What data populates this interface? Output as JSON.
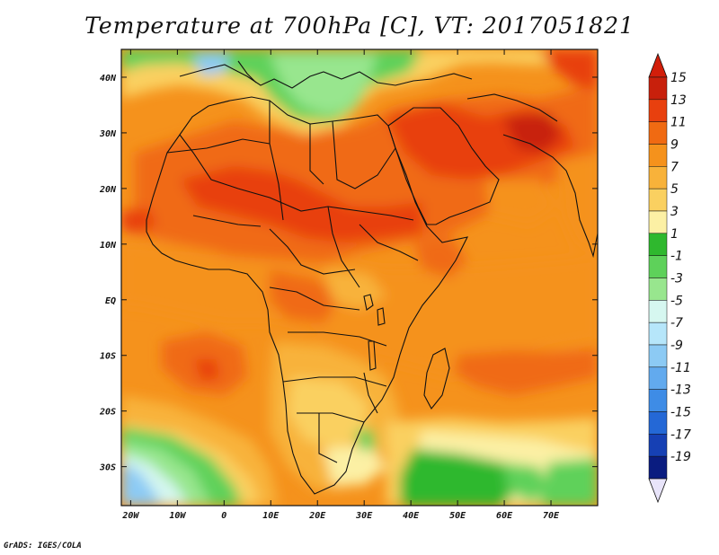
{
  "title": "Temperature at 700hPa [C], VT: 2017051821",
  "credit": "GrADS: IGES/COLA",
  "map": {
    "projection": "latlon",
    "lon_range": [
      -22,
      80
    ],
    "lat_range": [
      -37,
      45
    ],
    "x_tick_labels": [
      "20W",
      "10W",
      "0",
      "10E",
      "20E",
      "30E",
      "40E",
      "50E",
      "60E",
      "70E"
    ],
    "x_tick_values": [
      -20,
      -10,
      0,
      10,
      20,
      30,
      40,
      50,
      60,
      70
    ],
    "y_tick_labels": [
      "40N",
      "30N",
      "20N",
      "10N",
      "EQ",
      "10S",
      "20S",
      "30S"
    ],
    "y_tick_values": [
      40,
      30,
      20,
      10,
      0,
      -10,
      -20,
      -30
    ]
  },
  "colorbar": {
    "levels": [
      "15",
      "13",
      "11",
      "9",
      "7",
      "5",
      "3",
      "1",
      "-1",
      "-3",
      "-5",
      "-7",
      "-9",
      "-11",
      "-13",
      "-15",
      "-17",
      "-19"
    ],
    "colors": [
      "#c8200c",
      "#e8400e",
      "#f06a12",
      "#f5921c",
      "#f8b23a",
      "#fad060",
      "#fcf0a4",
      "#2fb82e",
      "#5ed15a",
      "#98e68e",
      "#d6f7f0",
      "#b6e6fa",
      "#8ccaf4",
      "#62aaee",
      "#3e8ce6",
      "#2468d6",
      "#1640b4",
      "#0a1c80"
    ],
    "top_color": "#d21e0a",
    "bottom_color": "#e8e4fa"
  }
}
